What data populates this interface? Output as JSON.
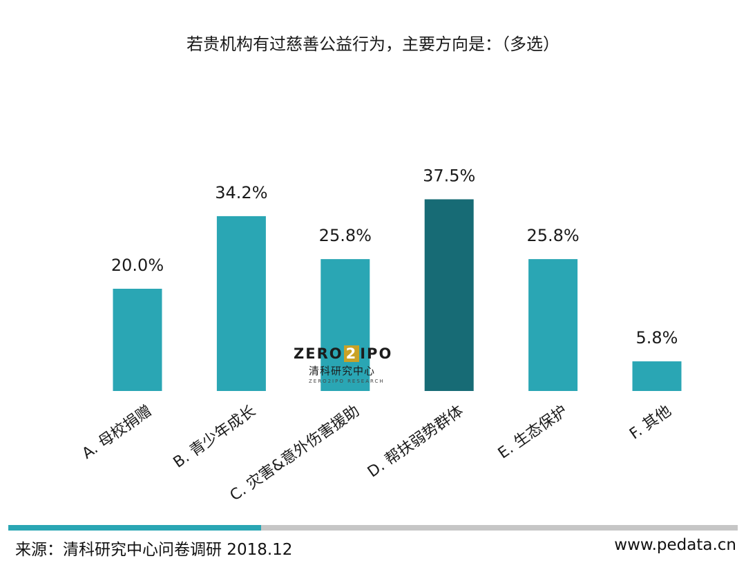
{
  "title": "若贵机构有过慈善公益行为，主要方向是：（多选）",
  "chart_data": {
    "type": "bar",
    "categories": [
      "A. 母校捐赠",
      "B. 青少年成长",
      "C. 灾害&意外伤害援助",
      "D. 帮扶弱势群体",
      "E. 生态保护",
      "F. 其他"
    ],
    "values": [
      20.0,
      34.2,
      25.8,
      37.5,
      25.8,
      5.8
    ],
    "value_labels": [
      "20.0%",
      "34.2%",
      "25.8%",
      "37.5%",
      "25.8%",
      "5.8%"
    ],
    "ylim": [
      0,
      40
    ],
    "grid": false,
    "colors": {
      "default": "#2aa6b4",
      "highlight": "#176b75"
    },
    "highlight_index": 3
  },
  "watermark": {
    "brand_left": "ZERO",
    "brand_box": "2",
    "brand_right": "IPO",
    "cn": "清科研究中心",
    "en": "ZERO2IPO RESEARCH"
  },
  "footer": {
    "source": "来源：清科研究中心问卷调研 2018.12",
    "site": "www.pedata.cn"
  }
}
